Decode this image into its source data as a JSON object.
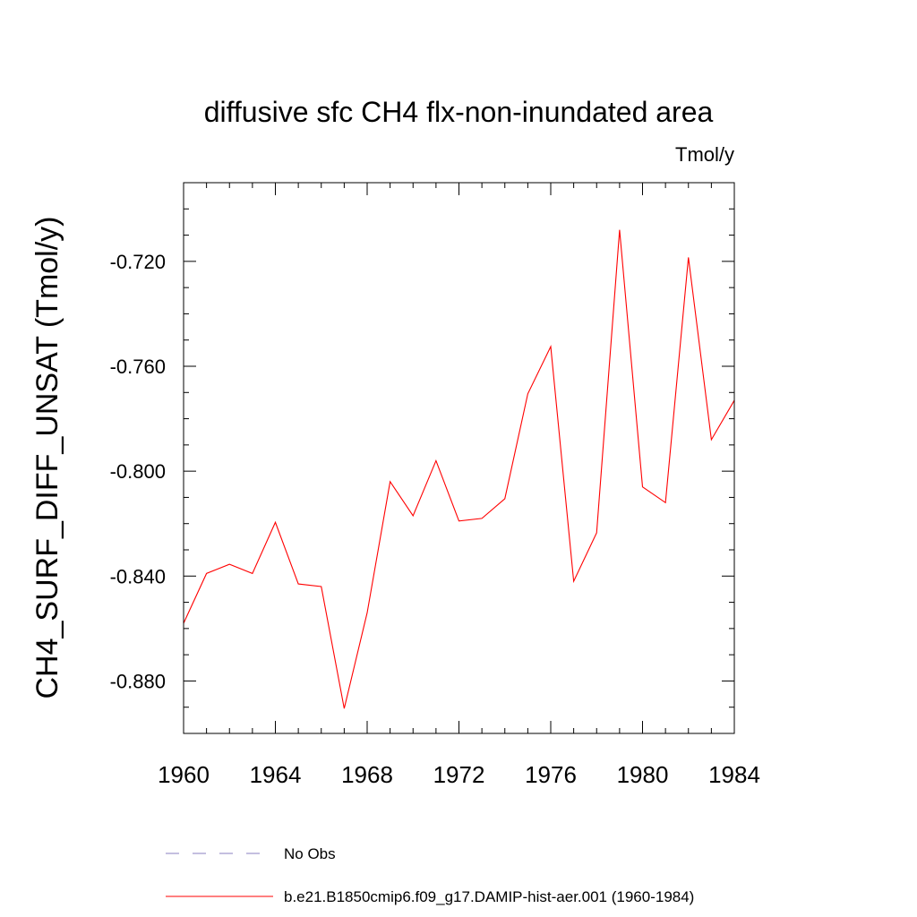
{
  "chart_data": {
    "type": "line",
    "title": "diffusive sfc CH4 flx-non-inundated area",
    "units_label": "Tmol/y",
    "ylabel": "CH4_SURF_DIFF_UNSAT  (Tmol/y)",
    "xlabel": "",
    "xlim": [
      1960,
      1984
    ],
    "ylim": [
      -0.9,
      -0.69
    ],
    "xticks": [
      1960,
      1964,
      1968,
      1972,
      1976,
      1980,
      1984
    ],
    "xtick_labels": [
      "1960",
      "1964",
      "1968",
      "1972",
      "1976",
      "1980",
      "1984"
    ],
    "yticks": [
      -0.88,
      -0.84,
      -0.8,
      -0.76,
      -0.72
    ],
    "ytick_labels": [
      "-0.880",
      "-0.840",
      "-0.800",
      "-0.760",
      "-0.720"
    ],
    "grid": false,
    "legend_position": "bottom",
    "series": [
      {
        "name": "b.e21.B1850cmip6.f09_g17.DAMIP-hist-aer.001 (1960-1984)",
        "color": "#ff0000",
        "style": "solid",
        "x": [
          1960,
          1961,
          1962,
          1963,
          1964,
          1965,
          1966,
          1967,
          1968,
          1969,
          1970,
          1971,
          1972,
          1973,
          1974,
          1975,
          1976,
          1977,
          1978,
          1979,
          1980,
          1981,
          1982,
          1983,
          1984
        ],
        "y": [
          -0.858,
          -0.839,
          -0.8355,
          -0.839,
          -0.8195,
          -0.843,
          -0.844,
          -0.8905,
          -0.854,
          -0.804,
          -0.817,
          -0.796,
          -0.819,
          -0.818,
          -0.8105,
          -0.7705,
          -0.7525,
          -0.842,
          -0.8235,
          -0.708,
          -0.806,
          -0.812,
          -0.7185,
          -0.788,
          -0.773
        ]
      },
      {
        "name": "No Obs",
        "color": "#8a7fc0",
        "style": "dashed",
        "x": [],
        "y": []
      }
    ]
  }
}
